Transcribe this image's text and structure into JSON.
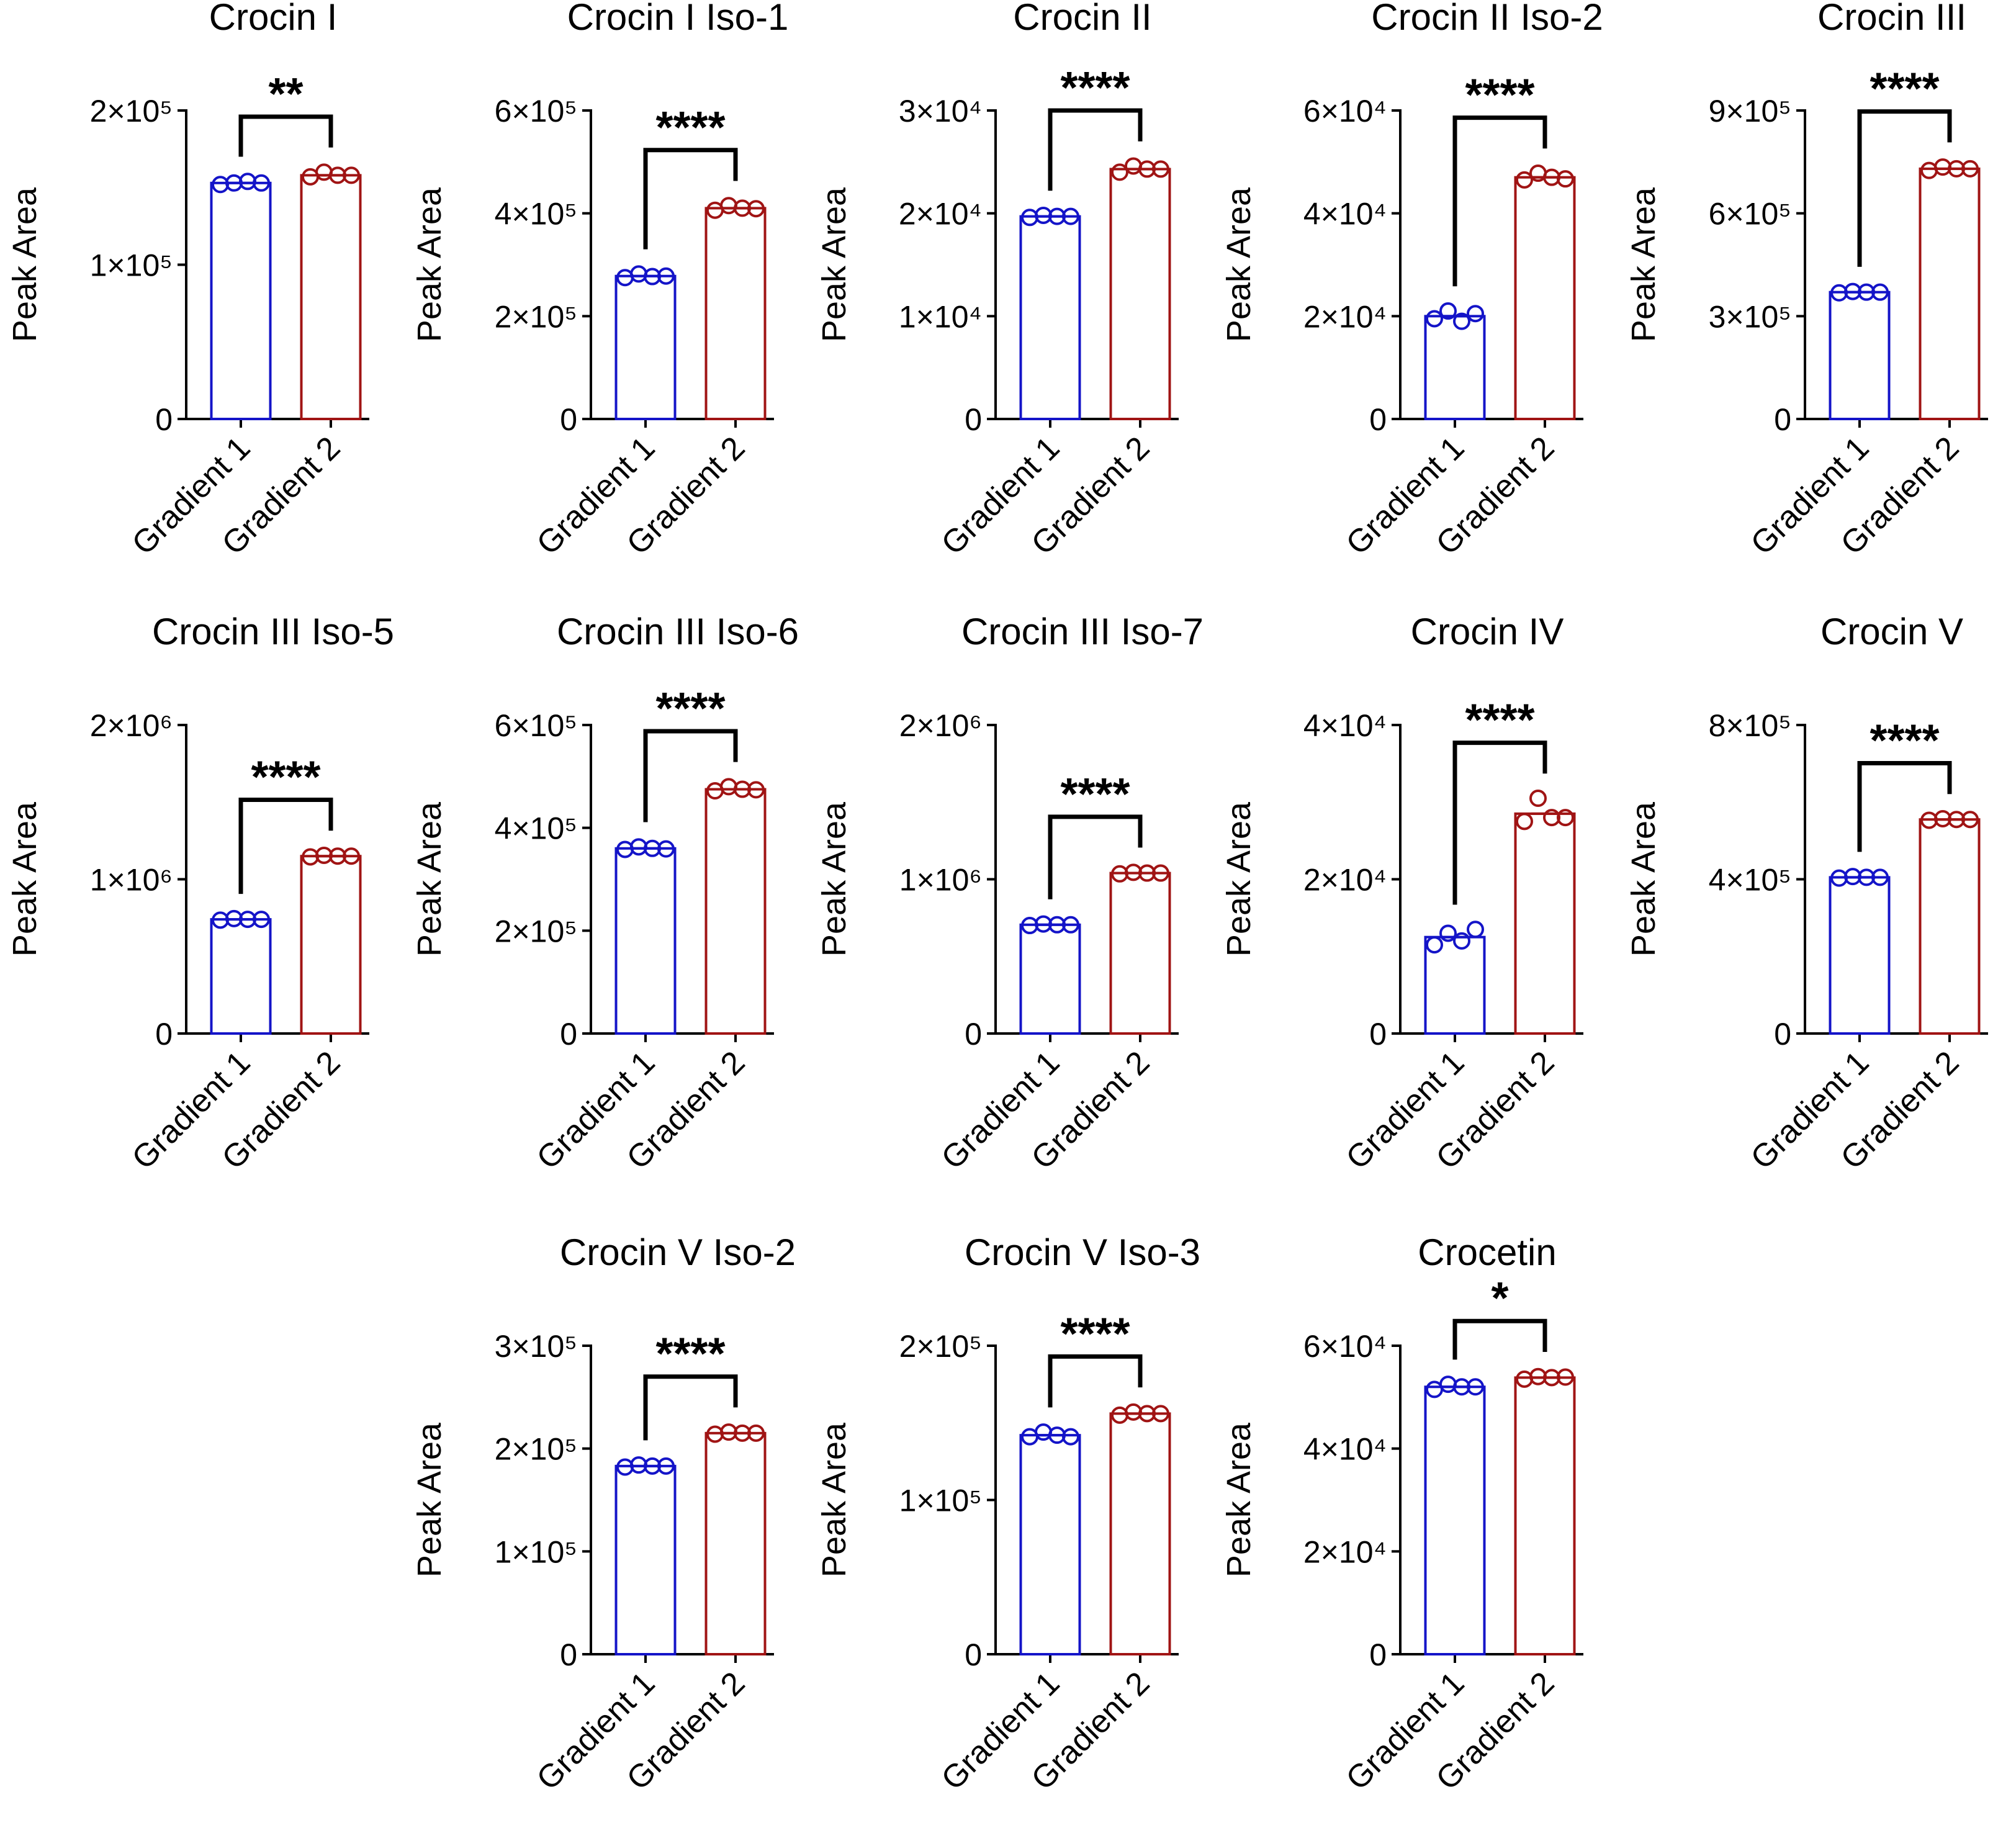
{
  "colors": {
    "gradient1": "#1414c8",
    "gradient2": "#a01414",
    "axis": "#000000"
  },
  "chart_data": [
    {
      "type": "bar",
      "title": "Crocin I",
      "ylabel": "Peak Area",
      "categories": [
        "Gradient 1",
        "Gradient 2"
      ],
      "ylim": [
        0,
        200000
      ],
      "ticks": [
        0,
        100000,
        200000
      ],
      "tick_labels": [
        "0",
        "1×10⁵",
        "2×10⁵"
      ],
      "means": [
        153000,
        158000
      ],
      "points": [
        [
          152000,
          153000,
          154000,
          153000
        ],
        [
          157000,
          160000,
          158000,
          158000
        ]
      ],
      "significance": "**"
    },
    {
      "type": "bar",
      "title": "Crocin I Iso-1",
      "ylabel": "Peak Area",
      "categories": [
        "Gradient 1",
        "Gradient 2"
      ],
      "ylim": [
        0,
        600000
      ],
      "ticks": [
        0,
        200000,
        400000,
        600000
      ],
      "tick_labels": [
        "0",
        "2×10⁵",
        "4×10⁵",
        "6×10⁵"
      ],
      "means": [
        278000,
        410000
      ],
      "points": [
        [
          275000,
          282000,
          277000,
          278000
        ],
        [
          406000,
          415000,
          410000,
          409000
        ]
      ],
      "significance": "****"
    },
    {
      "type": "bar",
      "title": "Crocin II",
      "ylabel": "Peak Area",
      "categories": [
        "Gradient 1",
        "Gradient 2"
      ],
      "ylim": [
        0,
        30000
      ],
      "ticks": [
        0,
        10000,
        20000,
        30000
      ],
      "tick_labels": [
        "0",
        "1×10⁴",
        "2×10⁴",
        "3×10⁴"
      ],
      "means": [
        19700,
        24300
      ],
      "points": [
        [
          19600,
          19800,
          19700,
          19700
        ],
        [
          24000,
          24600,
          24300,
          24300
        ]
      ],
      "significance": "****"
    },
    {
      "type": "bar",
      "title": "Crocin II Iso-2",
      "ylabel": "Peak Area",
      "categories": [
        "Gradient 1",
        "Gradient 2"
      ],
      "ylim": [
        0,
        60000
      ],
      "ticks": [
        0,
        20000,
        40000,
        60000
      ],
      "tick_labels": [
        "0",
        "2×10⁴",
        "4×10⁴",
        "6×10⁴"
      ],
      "means": [
        20000,
        47000
      ],
      "points": [
        [
          19500,
          21000,
          19000,
          20500
        ],
        [
          46500,
          47800,
          47000,
          46700
        ]
      ],
      "significance": "****"
    },
    {
      "type": "bar",
      "title": "Crocin III",
      "ylabel": "Peak Area",
      "categories": [
        "Gradient 1",
        "Gradient 2"
      ],
      "ylim": [
        0,
        900000
      ],
      "ticks": [
        0,
        300000,
        600000,
        900000
      ],
      "tick_labels": [
        "0",
        "3×10⁵",
        "6×10⁵",
        "9×10⁵"
      ],
      "means": [
        370000,
        730000
      ],
      "points": [
        [
          368000,
          372000,
          370000,
          370000
        ],
        [
          725000,
          735000,
          730000,
          730000
        ]
      ],
      "significance": "****"
    },
    {
      "type": "bar",
      "title": "Crocin III Iso-5",
      "ylabel": "Peak Area",
      "categories": [
        "Gradient 1",
        "Gradient 2"
      ],
      "ylim": [
        0,
        2000000
      ],
      "ticks": [
        0,
        1000000,
        2000000
      ],
      "tick_labels": [
        "0",
        "1×10⁶",
        "2×10⁶"
      ],
      "means": [
        740000,
        1150000
      ],
      "points": [
        [
          735000,
          745000,
          740000,
          740000
        ],
        [
          1145000,
          1155000,
          1150000,
          1150000
        ]
      ],
      "significance": "****"
    },
    {
      "type": "bar",
      "title": "Crocin III Iso-6",
      "ylabel": "Peak Area",
      "categories": [
        "Gradient 1",
        "Gradient 2"
      ],
      "ylim": [
        0,
        600000
      ],
      "ticks": [
        0,
        200000,
        400000,
        600000
      ],
      "tick_labels": [
        "0",
        "2×10⁵",
        "4×10⁵",
        "6×10⁵"
      ],
      "means": [
        360000,
        475000
      ],
      "points": [
        [
          358000,
          363000,
          360000,
          359000
        ],
        [
          472000,
          480000,
          475000,
          474000
        ]
      ],
      "significance": "****"
    },
    {
      "type": "bar",
      "title": "Crocin III Iso-7",
      "ylabel": "Peak Area",
      "categories": [
        "Gradient 1",
        "Gradient 2"
      ],
      "ylim": [
        0,
        2000000
      ],
      "ticks": [
        0,
        1000000,
        2000000
      ],
      "tick_labels": [
        "0",
        "1×10⁶",
        "2×10⁶"
      ],
      "means": [
        705000,
        1040000
      ],
      "points": [
        [
          700000,
          710000,
          705000,
          705000
        ],
        [
          1035000,
          1045000,
          1040000,
          1040000
        ]
      ],
      "significance": "****"
    },
    {
      "type": "bar",
      "title": "Crocin IV",
      "ylabel": "Peak Area",
      "categories": [
        "Gradient 1",
        "Gradient 2"
      ],
      "ylim": [
        0,
        40000
      ],
      "ticks": [
        0,
        20000,
        40000
      ],
      "tick_labels": [
        "0",
        "2×10⁴",
        "4×10⁴"
      ],
      "means": [
        12500,
        28500
      ],
      "points": [
        [
          11500,
          13000,
          12000,
          13500
        ],
        [
          27500,
          30500,
          28000,
          28000
        ]
      ],
      "significance": "****"
    },
    {
      "type": "bar",
      "title": "Crocin V",
      "ylabel": "Peak Area",
      "categories": [
        "Gradient 1",
        "Gradient 2"
      ],
      "ylim": [
        0,
        800000
      ],
      "ticks": [
        0,
        400000,
        800000
      ],
      "tick_labels": [
        "0",
        "4×10⁵",
        "8×10⁵"
      ],
      "means": [
        405000,
        555000
      ],
      "points": [
        [
          403000,
          407000,
          405000,
          405000
        ],
        [
          553000,
          557000,
          555000,
          555000
        ]
      ],
      "significance": "****"
    },
    {
      "type": "bar",
      "title": "Crocin V Iso-2",
      "ylabel": "Peak Area",
      "categories": [
        "Gradient 1",
        "Gradient 2"
      ],
      "ylim": [
        0,
        300000
      ],
      "ticks": [
        0,
        100000,
        200000,
        300000
      ],
      "tick_labels": [
        "0",
        "1×10⁵",
        "2×10⁵",
        "3×10⁵"
      ],
      "means": [
        183000,
        215000
      ],
      "points": [
        [
          182000,
          184000,
          183000,
          183000
        ],
        [
          214000,
          216000,
          215000,
          215000
        ]
      ],
      "significance": "****"
    },
    {
      "type": "bar",
      "title": "Crocin V Iso-3",
      "ylabel": "Peak Area",
      "categories": [
        "Gradient 1",
        "Gradient 2"
      ],
      "ylim": [
        0,
        200000
      ],
      "ticks": [
        0,
        100000,
        200000
      ],
      "tick_labels": [
        "0",
        "1×10⁵",
        "2×10⁵"
      ],
      "means": [
        142000,
        156000
      ],
      "points": [
        [
          141000,
          144000,
          142000,
          141000
        ],
        [
          155000,
          157000,
          156000,
          156000
        ]
      ],
      "significance": "****"
    },
    {
      "type": "bar",
      "title": "Crocetin",
      "ylabel": "Peak Area",
      "categories": [
        "Gradient 1",
        "Gradient 2"
      ],
      "ylim": [
        0,
        60000
      ],
      "ticks": [
        0,
        20000,
        40000,
        60000
      ],
      "tick_labels": [
        "0",
        "2×10⁴",
        "4×10⁴",
        "6×10⁴"
      ],
      "means": [
        52000,
        53800
      ],
      "points": [
        [
          51500,
          52500,
          52000,
          52000
        ],
        [
          53500,
          54000,
          53800,
          53900
        ]
      ],
      "significance": "*"
    }
  ]
}
